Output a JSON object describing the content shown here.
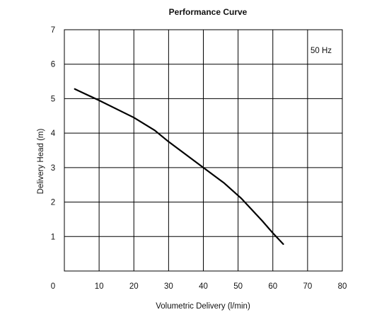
{
  "chart_data": {
    "type": "line",
    "title": "Performance Curve",
    "xlabel": "Volumetric Delivery (l/min)",
    "ylabel": "Delivery Head (m)",
    "xlim": [
      0,
      80
    ],
    "ylim": [
      0,
      7
    ],
    "x_ticks": [
      "0",
      "10",
      "20",
      "30",
      "40",
      "50",
      "60",
      "70",
      "80"
    ],
    "y_ticks": [
      "1",
      "2",
      "3",
      "4",
      "5",
      "6",
      "7"
    ],
    "grid": true,
    "annotation": "50 Hz",
    "series": [
      {
        "x": [
          3,
          10,
          20,
          26,
          30,
          36,
          40,
          46,
          51,
          57,
          60,
          63
        ],
        "y": [
          5.28,
          4.95,
          4.45,
          4.08,
          3.75,
          3.3,
          3.0,
          2.55,
          2.1,
          1.45,
          1.1,
          0.78
        ]
      }
    ],
    "colors": {
      "line": "#000000",
      "grid": "#000000"
    }
  }
}
